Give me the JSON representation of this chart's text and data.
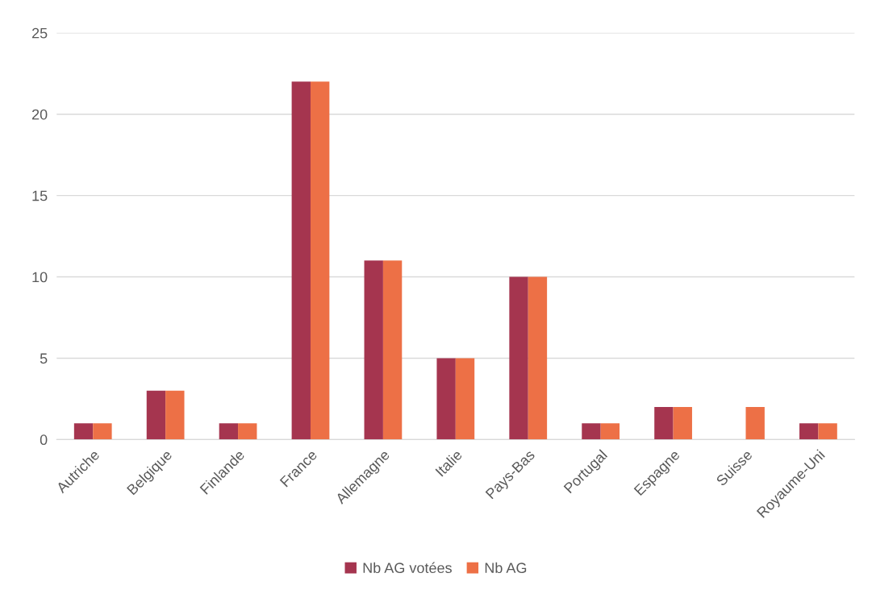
{
  "chart_data": {
    "type": "bar",
    "categories": [
      "Autriche",
      "Belgique",
      "Finlande",
      "France",
      "Allemagne",
      "Italie",
      "Pays-Bas",
      "Portugal",
      "Espagne",
      "Suisse",
      "Royaume-Uni"
    ],
    "series": [
      {
        "name": "Nb AG votées",
        "color": "#a5354f",
        "values": [
          1,
          3,
          1,
          22,
          11,
          5,
          10,
          1,
          2,
          null,
          1
        ]
      },
      {
        "name": "Nb AG",
        "color": "#ed7046",
        "values": [
          1,
          3,
          1,
          22,
          11,
          5,
          10,
          1,
          2,
          2,
          1
        ]
      }
    ],
    "ylim": [
      0,
      25
    ],
    "yticks": [
      0,
      5,
      10,
      15,
      20,
      25
    ],
    "grid": "y",
    "legend": "bottom"
  }
}
